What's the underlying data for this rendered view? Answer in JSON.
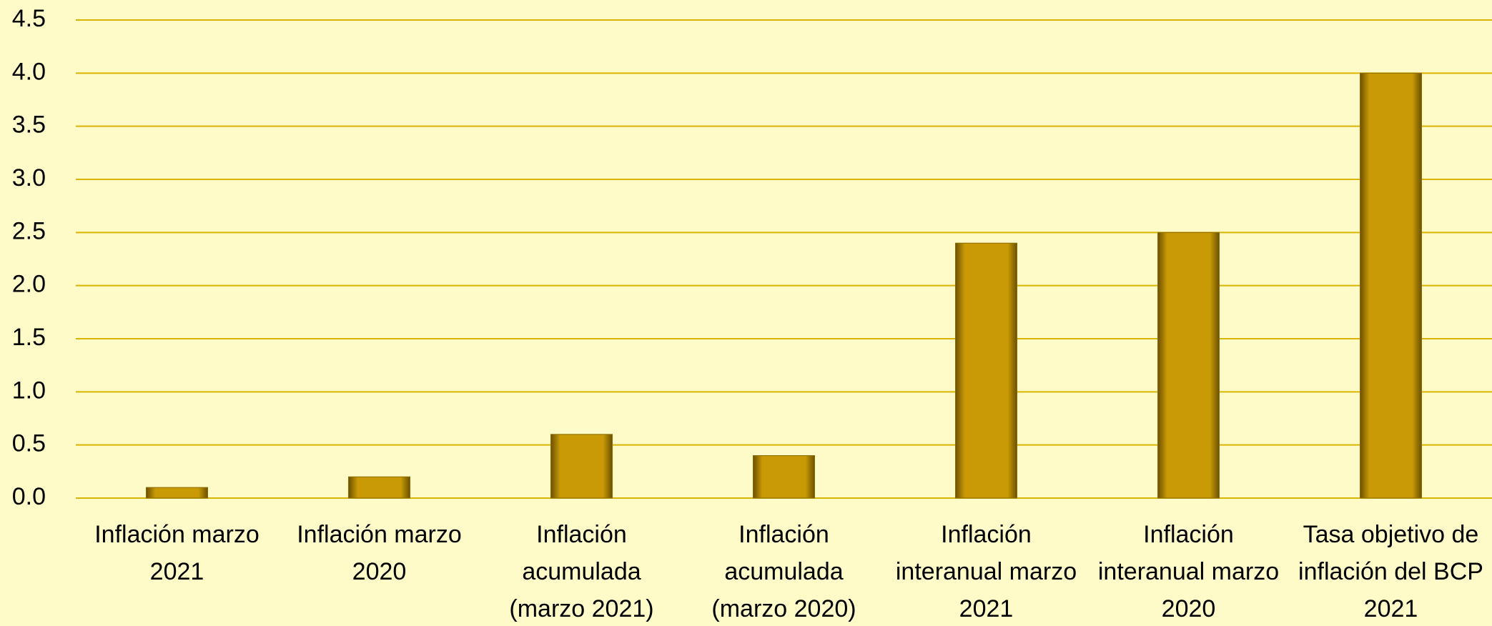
{
  "chart_data": {
    "type": "bar",
    "categories": [
      "Inflación marzo 2021",
      "Inflación marzo 2020",
      "Inflación acumulada (marzo 2021)",
      "Inflación acumulada (marzo 2020)",
      "Inflación interanual marzo 2021",
      "Inflación interanual marzo 2020",
      "Tasa objetivo de inflación del BCP 2021"
    ],
    "values": [
      0.1,
      0.2,
      0.6,
      0.4,
      2.4,
      2.5,
      4.0
    ],
    "color": "#c99a06",
    "ylim": [
      0,
      4.5
    ],
    "yticks": [
      {
        "value": 0,
        "label": "0.0"
      },
      0.5,
      {
        "value": 1,
        "label": "1.0"
      },
      1.5,
      {
        "value": 2,
        "label": "2.0"
      },
      2.5,
      {
        "value": 3,
        "label": "3.0"
      },
      3.5,
      {
        "value": 4,
        "label": "4.0"
      },
      4.5
    ],
    "grid": true
  }
}
